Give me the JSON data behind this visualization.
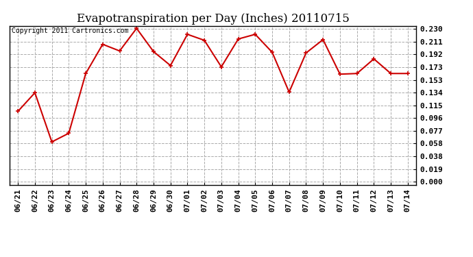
{
  "title": "Evapotranspiration per Day (Inches) 20110715",
  "copyright": "Copyright 2011 Cartronics.com",
  "dates": [
    "06/21",
    "06/22",
    "06/23",
    "06/24",
    "06/25",
    "06/26",
    "06/27",
    "06/28",
    "06/29",
    "06/30",
    "07/01",
    "07/02",
    "07/03",
    "07/04",
    "07/05",
    "07/06",
    "07/07",
    "07/08",
    "07/09",
    "07/10",
    "07/11",
    "07/12",
    "07/13",
    "07/14"
  ],
  "values": [
    0.106,
    0.134,
    0.06,
    0.073,
    0.163,
    0.207,
    0.197,
    0.231,
    0.196,
    0.175,
    0.222,
    0.213,
    0.173,
    0.215,
    0.222,
    0.195,
    0.135,
    0.194,
    0.214,
    0.162,
    0.163,
    0.185,
    0.163,
    0.163
  ],
  "yticks": [
    0.0,
    0.019,
    0.038,
    0.058,
    0.077,
    0.096,
    0.115,
    0.134,
    0.153,
    0.173,
    0.192,
    0.211,
    0.23
  ],
  "line_color": "#cc0000",
  "marker": "+",
  "grid_color": "#aaaaaa",
  "bg_color": "#ffffff",
  "title_fontsize": 12,
  "copyright_fontsize": 7,
  "tick_fontsize": 8,
  "ylim_min": -0.005,
  "ylim_max": 0.235
}
